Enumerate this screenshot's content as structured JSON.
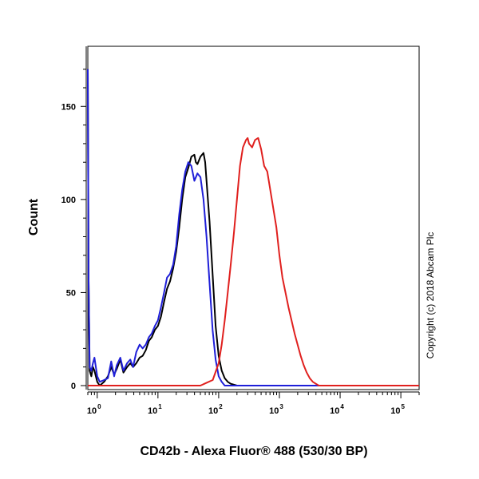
{
  "chart_data": {
    "type": "line",
    "xlabel": "CD42b - Alexa Fluor® 488 (530/30 BP)",
    "ylabel": "Count",
    "x_scale": "log",
    "xlim": [
      0.7,
      200000
    ],
    "ylim": [
      0,
      175
    ],
    "x_ticks": [
      {
        "value": 1,
        "base": "10",
        "exp": "0"
      },
      {
        "value": 10,
        "base": "10",
        "exp": "1"
      },
      {
        "value": 100,
        "base": "10",
        "exp": "2"
      },
      {
        "value": 1000,
        "base": "10",
        "exp": "3"
      },
      {
        "value": 10000,
        "base": "10",
        "exp": "4"
      },
      {
        "value": 100000,
        "base": "10",
        "exp": "5"
      }
    ],
    "y_ticks": [
      "0",
      "50",
      "100",
      "150"
    ],
    "y_tick_values": [
      0,
      50,
      100,
      150
    ],
    "copyright": "Copyright (c) 2018 Abcam Plc",
    "series": [
      {
        "color": "#000000",
        "points": [
          [
            0.7,
            170
          ],
          [
            0.72,
            60
          ],
          [
            0.75,
            8
          ],
          [
            0.8,
            5
          ],
          [
            0.85,
            10
          ],
          [
            0.9,
            8
          ],
          [
            1.0,
            2
          ],
          [
            1.1,
            0
          ],
          [
            1.3,
            2
          ],
          [
            1.5,
            5
          ],
          [
            1.7,
            10
          ],
          [
            1.9,
            6
          ],
          [
            2.1,
            9
          ],
          [
            2.4,
            14
          ],
          [
            2.7,
            7
          ],
          [
            3.1,
            10
          ],
          [
            3.5,
            12
          ],
          [
            3.9,
            10
          ],
          [
            4.4,
            12
          ],
          [
            5.0,
            15
          ],
          [
            5.6,
            16
          ],
          [
            6.3,
            19
          ],
          [
            7.1,
            24
          ],
          [
            7.9,
            26
          ],
          [
            8.9,
            30
          ],
          [
            10,
            32
          ],
          [
            11.2,
            37
          ],
          [
            12.6,
            45
          ],
          [
            14.1,
            52
          ],
          [
            15.8,
            56
          ],
          [
            17.8,
            63
          ],
          [
            20,
            72
          ],
          [
            22.4,
            85
          ],
          [
            25.1,
            100
          ],
          [
            28.2,
            112
          ],
          [
            31.6,
            117
          ],
          [
            35.5,
            123
          ],
          [
            39.8,
            124
          ],
          [
            42,
            120
          ],
          [
            44.7,
            119
          ],
          [
            50.1,
            123
          ],
          [
            56.2,
            125
          ],
          [
            60,
            120
          ],
          [
            63.1,
            110
          ],
          [
            70.8,
            88
          ],
          [
            79.4,
            60
          ],
          [
            89.1,
            32
          ],
          [
            100,
            16
          ],
          [
            112,
            8
          ],
          [
            126,
            4
          ],
          [
            141,
            2
          ],
          [
            158,
            1
          ],
          [
            200,
            0
          ],
          [
            300,
            0
          ],
          [
            1000,
            0
          ],
          [
            200000,
            0
          ]
        ]
      },
      {
        "color": "#1f1fd8",
        "points": [
          [
            0.7,
            170
          ],
          [
            0.72,
            60
          ],
          [
            0.75,
            10
          ],
          [
            0.8,
            8
          ],
          [
            0.85,
            12
          ],
          [
            0.9,
            15
          ],
          [
            1.0,
            5
          ],
          [
            1.1,
            2
          ],
          [
            1.3,
            3
          ],
          [
            1.5,
            4
          ],
          [
            1.7,
            13
          ],
          [
            1.9,
            5
          ],
          [
            2.1,
            11
          ],
          [
            2.4,
            15
          ],
          [
            2.7,
            8
          ],
          [
            3.1,
            12
          ],
          [
            3.5,
            14
          ],
          [
            3.9,
            10
          ],
          [
            4.4,
            18
          ],
          [
            5.0,
            22
          ],
          [
            5.6,
            20
          ],
          [
            6.3,
            22
          ],
          [
            7.1,
            26
          ],
          [
            7.9,
            28
          ],
          [
            8.9,
            32
          ],
          [
            10,
            35
          ],
          [
            11.2,
            42
          ],
          [
            12.6,
            50
          ],
          [
            14.1,
            58
          ],
          [
            15.8,
            60
          ],
          [
            17.8,
            65
          ],
          [
            20,
            75
          ],
          [
            22.4,
            92
          ],
          [
            25.1,
            105
          ],
          [
            28.2,
            115
          ],
          [
            31.6,
            120
          ],
          [
            35.5,
            118
          ],
          [
            39.8,
            110
          ],
          [
            44.7,
            114
          ],
          [
            50.1,
            112
          ],
          [
            56.2,
            100
          ],
          [
            63.1,
            80
          ],
          [
            70.8,
            55
          ],
          [
            79.4,
            30
          ],
          [
            89.1,
            14
          ],
          [
            100,
            5
          ],
          [
            112,
            2
          ],
          [
            126,
            0
          ],
          [
            300,
            0
          ],
          [
            1000,
            0
          ],
          [
            200000,
            0
          ]
        ]
      },
      {
        "color": "#e0201e",
        "points": [
          [
            0.7,
            0
          ],
          [
            50,
            0
          ],
          [
            80,
            3
          ],
          [
            100,
            12
          ],
          [
            112,
            22
          ],
          [
            126,
            35
          ],
          [
            141,
            50
          ],
          [
            158,
            65
          ],
          [
            178,
            82
          ],
          [
            200,
            100
          ],
          [
            224,
            118
          ],
          [
            251,
            128
          ],
          [
            282,
            132
          ],
          [
            300,
            133
          ],
          [
            316,
            130
          ],
          [
            355,
            128
          ],
          [
            398,
            132
          ],
          [
            447,
            133
          ],
          [
            501,
            127
          ],
          [
            562,
            118
          ],
          [
            631,
            115
          ],
          [
            708,
            105
          ],
          [
            794,
            95
          ],
          [
            891,
            85
          ],
          [
            1000,
            70
          ],
          [
            1122,
            58
          ],
          [
            1259,
            50
          ],
          [
            1413,
            42
          ],
          [
            1585,
            35
          ],
          [
            1778,
            28
          ],
          [
            1995,
            22
          ],
          [
            2239,
            16
          ],
          [
            2512,
            11
          ],
          [
            2818,
            7
          ],
          [
            3162,
            4
          ],
          [
            3548,
            2
          ],
          [
            3981,
            1
          ],
          [
            4467,
            0
          ],
          [
            200000,
            0
          ]
        ]
      }
    ]
  }
}
